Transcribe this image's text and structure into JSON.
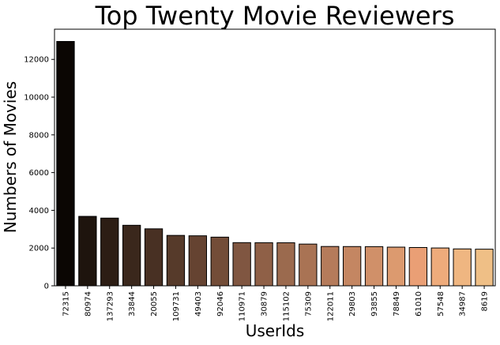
{
  "chart_data": {
    "type": "bar",
    "title": "Top Twenty Movie Reviewers",
    "xlabel": "UserIds",
    "ylabel": "Numbers of Movies",
    "categories": [
      "72315",
      "80974",
      "137293",
      "33844",
      "20055",
      "109731",
      "49403",
      "92046",
      "110971",
      "30879",
      "115102",
      "75309",
      "122011",
      "29803",
      "93855",
      "78849",
      "61010",
      "57548",
      "34987",
      "8619"
    ],
    "values": [
      12952,
      3680,
      3588,
      3208,
      3020,
      2671,
      2650,
      2579,
      2288,
      2284,
      2281,
      2211,
      2084,
      2080,
      2075,
      2049,
      2030,
      2005,
      1955,
      1940
    ],
    "colors": [
      "#0b0603",
      "#1e140d",
      "#2c1d14",
      "#3a271c",
      "#483023",
      "#563a2a",
      "#654331",
      "#734d38",
      "#805641",
      "#8f6047",
      "#9b6a4e",
      "#a97354",
      "#b57b5b",
      "#c48662",
      "#d09069",
      "#dc9a6f",
      "#ea9f75",
      "#eeab7b",
      "#efb681",
      "#efbf86"
    ],
    "yticks": [
      0,
      2000,
      4000,
      6000,
      8000,
      10000,
      12000
    ],
    "ylim": [
      0,
      13600
    ],
    "grid": false
  }
}
